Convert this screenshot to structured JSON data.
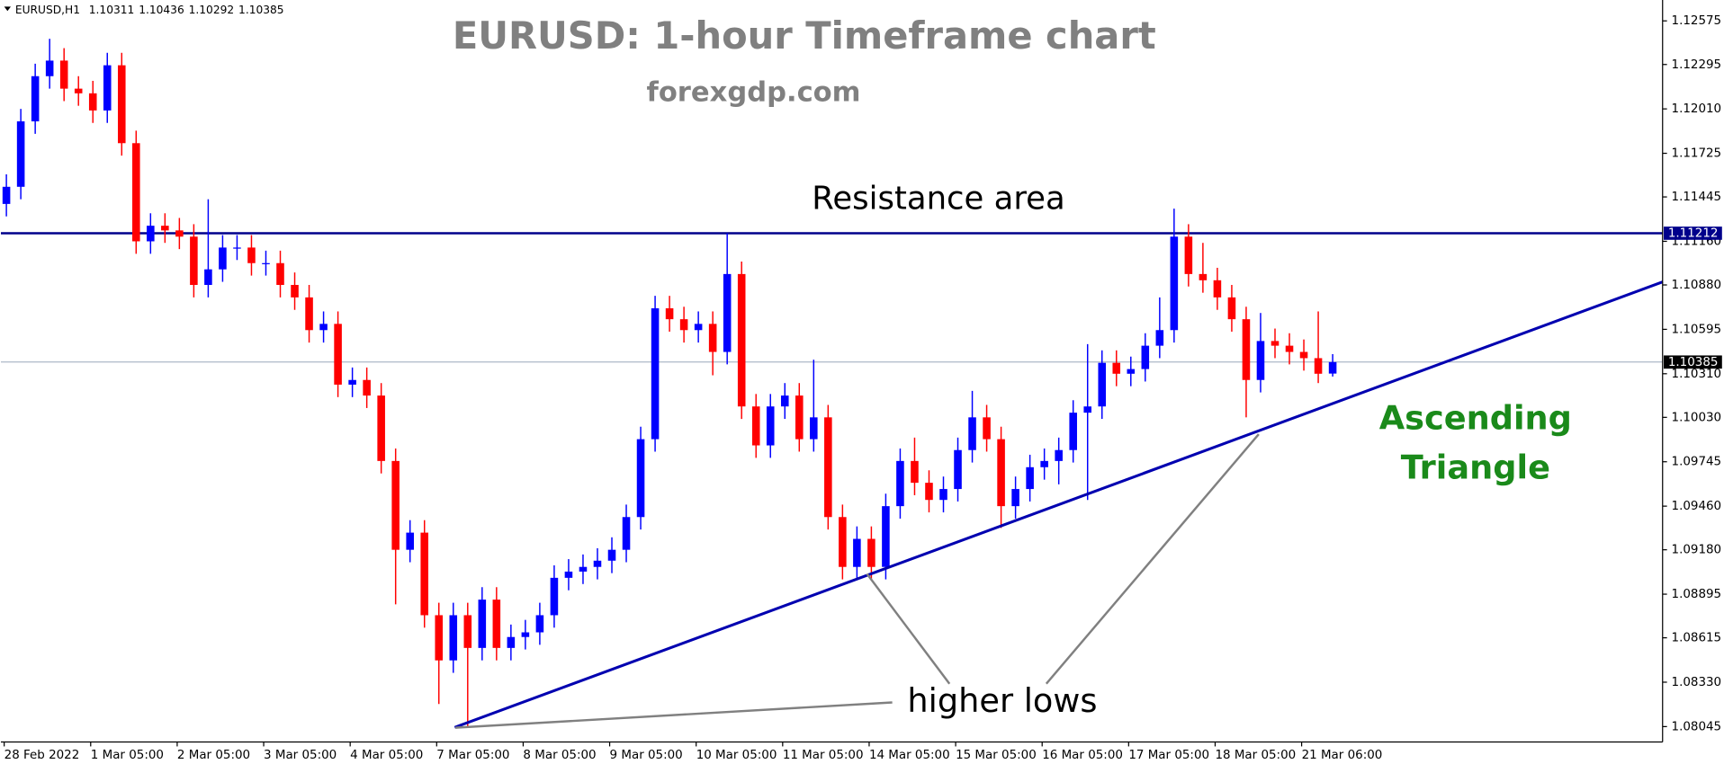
{
  "chart_data": {
    "type": "candlestick",
    "title": "EURUSD: 1-hour Timeframe chart",
    "subtitle": "forexgdp.com",
    "symbol": "EURUSD,H1",
    "resistance_label": "Resistance area",
    "pattern_label": [
      "Ascending",
      "Triangle"
    ],
    "lows_label": "higher lows",
    "up_color": "#0000ff",
    "down_color": "#ff0000",
    "resistance": 1.11212,
    "resistance_color": "#00008b",
    "trendline": {
      "start": [
        31.1,
        1.0804
      ],
      "end": [
        114.9,
        1.109
      ]
    },
    "trendline_color": "#0000b0",
    "ylim": [
      1.07946,
      1.12709
    ],
    "yticks": [
      1.12575,
      1.12295,
      {
        "value": 1.1201,
        "label": "1.12010"
      },
      1.11725,
      1.11445,
      {
        "value": 1.1116,
        "label": "1.11160"
      },
      {
        "value": 1.1088,
        "label": "1.10880"
      },
      1.10595,
      {
        "value": 1.1031,
        "label": "1.10310"
      },
      {
        "value": 1.1003,
        "label": "1.10030"
      },
      1.09745,
      {
        "value": 1.0946,
        "label": "1.09460"
      },
      {
        "value": 1.0918,
        "label": "1.09180"
      },
      1.08895,
      1.08615,
      {
        "value": 1.0833,
        "label": "1.08330"
      },
      1.08045
    ],
    "categories": [
      "28 Feb 2022",
      null,
      null,
      null,
      null,
      null,
      "1 Mar 05:00",
      null,
      null,
      null,
      null,
      null,
      "2 Mar 05:00",
      null,
      null,
      null,
      null,
      null,
      "3 Mar 05:00",
      null,
      null,
      null,
      null,
      null,
      "4 Mar 05:00",
      null,
      null,
      null,
      null,
      null,
      "7 Mar 05:00",
      null,
      null,
      null,
      null,
      null,
      "8 Mar 05:00",
      null,
      null,
      null,
      null,
      null,
      "9 Mar 05:00",
      null,
      null,
      null,
      null,
      null,
      "10 Mar 05:00",
      null,
      null,
      null,
      null,
      null,
      "11 Mar 05:00",
      null,
      null,
      null,
      null,
      null,
      "14 Mar 05:00",
      null,
      null,
      null,
      null,
      null,
      "15 Mar 05:00",
      null,
      null,
      null,
      null,
      null,
      "16 Mar 05:00",
      null,
      null,
      null,
      null,
      null,
      "17 Mar 05:00",
      null,
      null,
      null,
      null,
      null,
      "18 Mar 05:00",
      null,
      null,
      null,
      null,
      null,
      "21 Mar 06:00",
      null,
      null
    ],
    "open": [
      1.114,
      1.1151,
      1.1193,
      1.1222,
      1.1232,
      1.1214,
      1.1211,
      1.12,
      1.1229,
      1.1179,
      1.1116,
      1.1126,
      1.1123,
      1.1119,
      1.1088,
      1.1098,
      1.1112,
      1.1112,
      1.1102,
      1.1102,
      1.1088,
      1.108,
      1.1059,
      1.1063,
      1.1024,
      1.1027,
      1.1017,
      1.0975,
      1.0918,
      1.0929,
      1.0876,
      1.0847,
      1.0876,
      1.0855,
      1.0886,
      1.0855,
      1.0862,
      1.0865,
      1.0876,
      1.09,
      1.0904,
      1.0907,
      1.0911,
      1.0918,
      1.0939,
      1.0989,
      1.1073,
      1.1066,
      1.1059,
      1.1063,
      1.1045,
      1.1095,
      1.101,
      1.0985,
      1.101,
      1.1017,
      1.0989,
      1.1003,
      1.0939,
      1.0907,
      1.0925,
      1.0907,
      1.0946,
      1.0975,
      1.0961,
      1.095,
      1.0957,
      1.0982,
      1.1003,
      1.0989,
      1.0946,
      1.0957,
      1.0971,
      1.0975,
      1.0982,
      1.1006,
      1.101,
      1.1038,
      1.1031,
      1.1034,
      1.1049,
      1.1059,
      1.1119,
      1.1095,
      1.1091,
      1.108,
      1.1066,
      1.1027,
      1.1052,
      1.1049,
      1.1045,
      1.1041,
      1.10311
    ],
    "high": [
      1.1159,
      1.1201,
      1.123,
      1.1246,
      1.124,
      1.1222,
      1.1219,
      1.1237,
      1.1237,
      1.1187,
      1.1134,
      1.1134,
      1.1131,
      1.1127,
      1.1143,
      1.112,
      1.112,
      1.112,
      1.111,
      1.111,
      1.1096,
      1.1088,
      1.1071,
      1.1071,
      1.1035,
      1.1035,
      1.1025,
      1.0983,
      1.0937,
      1.0937,
      1.0884,
      1.0884,
      1.0884,
      1.0894,
      1.0894,
      1.087,
      1.0873,
      1.0884,
      1.0908,
      1.0912,
      1.0915,
      1.0919,
      1.0926,
      1.0947,
      1.0997,
      1.1081,
      1.1081,
      1.1074,
      1.1071,
      1.1071,
      1.1121,
      1.1103,
      1.1018,
      1.1018,
      1.1025,
      1.1025,
      1.104,
      1.1011,
      1.0947,
      1.0933,
      1.0933,
      1.0954,
      1.0983,
      1.099,
      1.0969,
      1.0965,
      1.099,
      1.102,
      1.1011,
      1.0997,
      1.0965,
      1.0979,
      1.0983,
      1.099,
      1.1014,
      1.105,
      1.1046,
      1.1046,
      1.1042,
      1.1057,
      1.108,
      1.1137,
      1.1127,
      1.1115,
      1.1099,
      1.1088,
      1.1074,
      1.107,
      1.106,
      1.1057,
      1.1053,
      1.1071,
      1.10436
    ],
    "low": [
      1.1132,
      1.1143,
      1.1185,
      1.1214,
      1.1206,
      1.1203,
      1.1192,
      1.1192,
      1.1171,
      1.1108,
      1.1108,
      1.1115,
      1.1111,
      1.108,
      1.108,
      1.109,
      1.1104,
      1.1094,
      1.1094,
      1.108,
      1.1072,
      1.1051,
      1.1051,
      1.1016,
      1.1016,
      1.1009,
      1.0967,
      1.0883,
      1.091,
      1.0868,
      1.0819,
      1.0839,
      1.08045,
      1.0847,
      1.0847,
      1.0847,
      1.0854,
      1.0857,
      1.0868,
      1.0892,
      1.0896,
      1.0899,
      1.0903,
      1.091,
      1.0931,
      1.0981,
      1.1058,
      1.1051,
      1.1051,
      1.103,
      1.1037,
      1.1002,
      1.0977,
      1.0977,
      1.1002,
      1.0981,
      1.0981,
      1.0931,
      1.0899,
      1.0899,
      1.0899,
      1.0899,
      1.0938,
      1.0953,
      1.0942,
      1.0942,
      1.0949,
      1.0974,
      1.0981,
      1.0932,
      1.0938,
      1.0949,
      1.0963,
      1.096,
      1.0974,
      1.095,
      1.1002,
      1.1023,
      1.1023,
      1.1026,
      1.1041,
      1.1051,
      1.1087,
      1.1083,
      1.1072,
      1.1058,
      1.1003,
      1.1019,
      1.1041,
      1.1037,
      1.1033,
      1.1025,
      1.10292
    ],
    "close": [
      1.1151,
      1.1193,
      1.1222,
      1.1232,
      1.1214,
      1.1211,
      1.12,
      1.1229,
      1.1179,
      1.1116,
      1.1126,
      1.1123,
      1.1119,
      1.1088,
      1.1098,
      1.1112,
      1.1112,
      1.1102,
      1.1102,
      1.1088,
      1.108,
      1.1059,
      1.1063,
      1.1024,
      1.1027,
      1.1017,
      1.0975,
      1.0918,
      1.0929,
      1.0876,
      1.0847,
      1.0876,
      1.0855,
      1.0886,
      1.0855,
      1.0862,
      1.0865,
      1.0876,
      1.09,
      1.0904,
      1.0907,
      1.0911,
      1.0918,
      1.0939,
      1.0989,
      1.1073,
      1.1066,
      1.1059,
      1.1063,
      1.1045,
      1.1095,
      1.101,
      1.0985,
      1.101,
      1.1017,
      1.0989,
      1.1003,
      1.0939,
      1.0907,
      1.0925,
      1.0907,
      1.0946,
      1.0975,
      1.0961,
      1.095,
      1.0957,
      1.0982,
      1.1003,
      1.0989,
      1.0946,
      1.0957,
      1.0971,
      1.0975,
      1.0982,
      1.1006,
      1.101,
      1.1038,
      1.1031,
      1.1034,
      1.1049,
      1.1059,
      1.1119,
      1.1095,
      1.1091,
      1.108,
      1.1066,
      1.1027,
      1.1052,
      1.1049,
      1.1045,
      1.1041,
      1.1031,
      1.10385
    ]
  }
}
